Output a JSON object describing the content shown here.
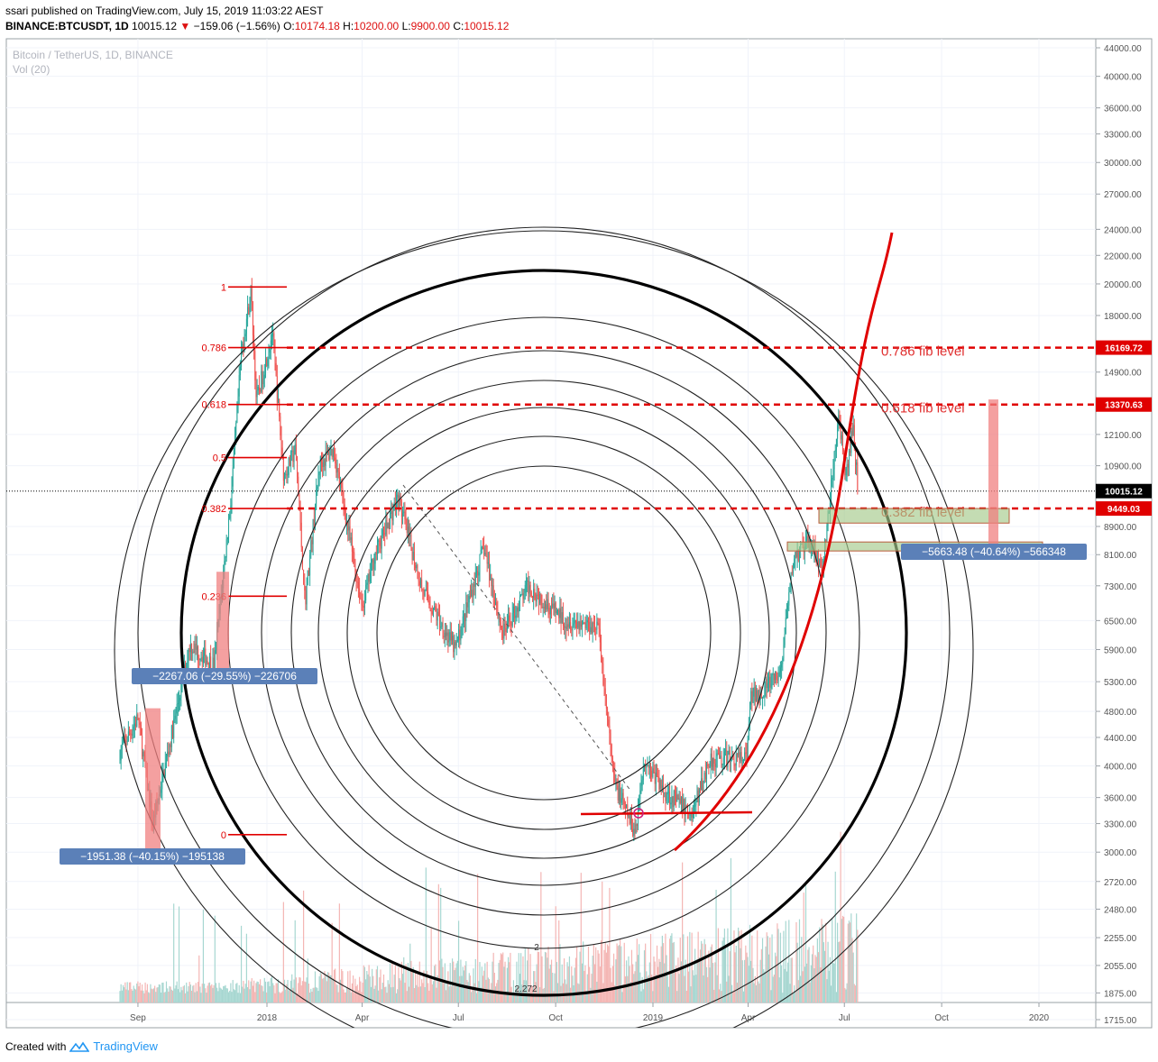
{
  "header": {
    "line1": "ssari published on TradingView.com, July 15, 2019 11:03:22 AEST",
    "symbol": "BINANCE:BTCUSDT, 1D",
    "last": "10015.12",
    "change": "−159.06 (−1.56%)",
    "o_label": "O:",
    "o_val": "10174.18",
    "h_label": "H:",
    "h_val": "10200.00",
    "l_label": "L:",
    "l_val": "9900.00",
    "c_label": "C:",
    "c_val": "10015.12"
  },
  "legend": {
    "series": "Bitcoin / TetherUS, 1D, BINANCE",
    "volume": "Vol (20)"
  },
  "footer": {
    "created_with": "Created with",
    "brand": "TradingView"
  },
  "colors": {
    "up": "#26a69a",
    "down": "#ef5350",
    "red": "#e00000",
    "label_bg": "#5b80b8",
    "zone": "#a5c98a"
  },
  "chart_data": {
    "type": "candlestick",
    "y_scale": "log",
    "ylim": [
      1690,
      45000
    ],
    "y_ticks": [
      44000,
      40000,
      36000,
      33000,
      30000,
      27000,
      24000,
      22000,
      20000,
      18000,
      16169.72,
      14900,
      13370.63,
      12100,
      10900,
      10015.12,
      9449.03,
      8900,
      8100,
      7300,
      6500,
      5900,
      5300,
      4800,
      4400,
      4000,
      3600,
      3300,
      3000,
      2720,
      2480,
      2255,
      2055,
      1875,
      1715
    ],
    "x_ticks": [
      "Sep",
      "2018",
      "Apr",
      "Jul",
      "Oct",
      "2019",
      "Apr",
      "Jul",
      "Oct",
      "2020"
    ],
    "price_tags": [
      {
        "value": 16169.72,
        "label": "16169.72",
        "color": "#e00000"
      },
      {
        "value": 13370.63,
        "label": "13370.63",
        "color": "#e00000"
      },
      {
        "value": 10015.12,
        "label": "10015.12",
        "color": "#000000"
      },
      {
        "value": 9449.03,
        "label": "9449.03",
        "color": "#e00000"
      }
    ],
    "fib_retracement": {
      "levels": [
        {
          "ratio": "1",
          "price": 19800
        },
        {
          "ratio": "0.786",
          "price": 16169.72
        },
        {
          "ratio": "0.618",
          "price": 13370.63
        },
        {
          "ratio": "0.5",
          "price": 11200
        },
        {
          "ratio": "0.382",
          "price": 9449.03
        },
        {
          "ratio": "0.236",
          "price": 7050
        },
        {
          "ratio": "0",
          "price": 3180
        }
      ]
    },
    "fib_lines": [
      {
        "price": 16169.72,
        "label": "0.786 fib level"
      },
      {
        "price": 13370.63,
        "label": "0.618 fib level"
      },
      {
        "price": 9449.03,
        "label": "0.382 fib level"
      }
    ],
    "measure_labels": [
      "−1951.38 (−40.15%) −195138",
      "−2267.06 (−29.55%) −226706",
      "−5663.48 (−40.64%) −566348"
    ],
    "arc_labels": [
      "2",
      "2.272"
    ],
    "price_path": [
      [
        "2017-08-15",
        4200
      ],
      [
        "2017-09-01",
        4700
      ],
      [
        "2017-09-15",
        3300
      ],
      [
        "2017-10-01",
        4300
      ],
      [
        "2017-10-20",
        6000
      ],
      [
        "2017-11-12",
        5600
      ],
      [
        "2017-11-28",
        9800
      ],
      [
        "2017-12-08",
        16000
      ],
      [
        "2017-12-17",
        19500
      ],
      [
        "2017-12-22",
        13500
      ],
      [
        "2018-01-06",
        17000
      ],
      [
        "2018-01-17",
        10500
      ],
      [
        "2018-01-28",
        11500
      ],
      [
        "2018-02-06",
        6900
      ],
      [
        "2018-02-20",
        11000
      ],
      [
        "2018-03-05",
        11500
      ],
      [
        "2018-04-01",
        6800
      ],
      [
        "2018-04-12",
        8000
      ],
      [
        "2018-05-05",
        9800
      ],
      [
        "2018-05-28",
        7200
      ],
      [
        "2018-06-28",
        5900
      ],
      [
        "2018-07-25",
        8300
      ],
      [
        "2018-08-12",
        6200
      ],
      [
        "2018-09-05",
        7300
      ],
      [
        "2018-10-10",
        6500
      ],
      [
        "2018-11-10",
        6400
      ],
      [
        "2018-11-25",
        3800
      ],
      [
        "2018-12-15",
        3200
      ],
      [
        "2018-12-24",
        4100
      ],
      [
        "2019-01-10",
        3700
      ],
      [
        "2019-02-07",
        3400
      ],
      [
        "2019-02-24",
        4100
      ],
      [
        "2019-03-31",
        4100
      ],
      [
        "2019-04-03",
        5000
      ],
      [
        "2019-05-01",
        5400
      ],
      [
        "2019-05-14",
        8000
      ],
      [
        "2019-05-31",
        8500
      ],
      [
        "2019-06-10",
        7600
      ],
      [
        "2019-06-26",
        13000
      ],
      [
        "2019-07-02",
        10200
      ],
      [
        "2019-07-09",
        12500
      ],
      [
        "2019-07-14",
        10015
      ]
    ]
  }
}
